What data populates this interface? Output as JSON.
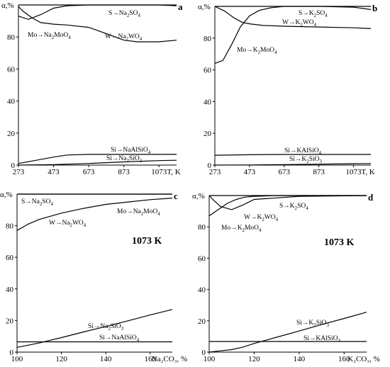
{
  "chart_data": [
    {
      "panel": "a",
      "type": "line",
      "ylabel": "α,%",
      "xlabel": "T, K",
      "xlim": [
        273,
        1173
      ],
      "ylim": [
        0,
        100
      ],
      "xticks": [
        273,
        473,
        673,
        873,
        1073
      ],
      "yticks": [
        0,
        20,
        40,
        60,
        80
      ],
      "annotation": "",
      "series": [
        {
          "name": "S→Na2SO4",
          "x": [
            273,
            473,
            673,
            873,
            1073,
            1173
          ],
          "y": [
            100,
            100,
            100,
            100,
            100,
            100
          ]
        },
        {
          "name": "Mo→Na2MoO4",
          "x": [
            273,
            330,
            400,
            473,
            550,
            673,
            873,
            1073,
            1173
          ],
          "y": [
            93,
            91,
            94,
            98,
            99.5,
            100,
            100,
            100,
            99.5
          ]
        },
        {
          "name": "W→Na2WO4",
          "x": [
            273,
            300,
            350,
            400,
            473,
            550,
            673,
            750,
            873,
            950,
            1073,
            1173
          ],
          "y": [
            99,
            96,
            92,
            89,
            88,
            87.5,
            86,
            83,
            78,
            77,
            77,
            78
          ]
        },
        {
          "name": "Si→NaAlSiO4",
          "x": [
            273,
            350,
            473,
            550,
            673,
            873,
            1073,
            1173
          ],
          "y": [
            1,
            2.5,
            5,
            6.3,
            6.7,
            6.7,
            6.7,
            6.7
          ]
        },
        {
          "name": "Si→Na2SiO3",
          "x": [
            273,
            473,
            673,
            873,
            1073,
            1173
          ],
          "y": [
            0,
            0.3,
            1.0,
            2.0,
            2.8,
            3.0
          ]
        }
      ],
      "labels": {
        "S→Na2SO4": {
          "main": "S→Na",
          "sub": "2",
          "tail": "SO",
          "sub2": "4"
        },
        "Mo→Na2MoO4": {
          "main": "Mo→Na",
          "sub": "2",
          "tail": "MoO",
          "sub2": "4"
        },
        "W→Na2WO4": {
          "main": "W→Na",
          "sub": "2",
          "tail": "WO",
          "sub2": "4"
        },
        "Si→NaAlSiO4": {
          "main": "Si→NaAlSiO",
          "sub": "4",
          "tail": "",
          "sub2": ""
        },
        "Si→Na2SiO3": {
          "main": "Si→Na",
          "sub": "2",
          "tail": "SiO",
          "sub2": "3"
        }
      }
    },
    {
      "panel": "b",
      "type": "line",
      "ylabel": "α,%",
      "xlabel": "T, K",
      "xlim": [
        273,
        1173
      ],
      "ylim": [
        0,
        100
      ],
      "xticks": [
        273,
        473,
        673,
        873,
        1073
      ],
      "yticks": [
        0,
        20,
        40,
        60,
        80
      ],
      "annotation": "",
      "series": [
        {
          "name": "S→K2SO4",
          "x": [
            273,
            473,
            673,
            873,
            1073,
            1173
          ],
          "y": [
            100,
            100,
            100,
            100,
            100,
            100
          ]
        },
        {
          "name": "W→K2WO4",
          "x": [
            273,
            330,
            380,
            430,
            473,
            550,
            673,
            873,
            1073,
            1173
          ],
          "y": [
            100,
            97,
            93,
            90,
            89,
            88,
            87.5,
            87,
            86.5,
            86
          ]
        },
        {
          "name": "Mo→K2MoO4",
          "x": [
            273,
            320,
            370,
            420,
            473,
            530,
            600,
            673,
            873,
            1073,
            1173
          ],
          "y": [
            64,
            66,
            76,
            87,
            94,
            97.5,
            99.2,
            100,
            100,
            99.5,
            98
          ]
        },
        {
          "name": "Si→KAlSiO4",
          "x": [
            273,
            473,
            673,
            873,
            1073,
            1173
          ],
          "y": [
            6.2,
            6.5,
            6.7,
            6.7,
            6.7,
            6.7
          ]
        },
        {
          "name": "Si→K2SiO3",
          "x": [
            273,
            473,
            673,
            873,
            1073,
            1173
          ],
          "y": [
            0,
            0.1,
            0.3,
            0.6,
            0.9,
            1.0
          ]
        }
      ],
      "labels": {
        "S→K2SO4": {
          "main": "S→K",
          "sub": "2",
          "tail": "SO",
          "sub2": "4"
        },
        "W→K2WO4": {
          "main": "W→K",
          "sub": "2",
          "tail": "WO",
          "sub2": "4"
        },
        "Mo→K2MoO4": {
          "main": "Mo→K",
          "sub": "2",
          "tail": "MoO",
          "sub2": "4"
        },
        "Si→KAlSiO4": {
          "main": "Si→KAlSiO",
          "sub": "4",
          "tail": "",
          "sub2": ""
        },
        "Si→K2SiO3": {
          "main": "Si→K",
          "sub": "2",
          "tail": "SiO",
          "sub2": "3"
        }
      }
    },
    {
      "panel": "c",
      "type": "line",
      "ylabel": "α,%",
      "xlabel": "Na₂CO₃, %",
      "xlim": [
        100,
        170
      ],
      "ylim": [
        0,
        100
      ],
      "xticks": [
        100,
        120,
        140,
        160
      ],
      "yticks": [
        0,
        20,
        40,
        60,
        80
      ],
      "annotation": "1073 K",
      "series": [
        {
          "name": "S→Na2SO4",
          "x": [
            100,
            120,
            140,
            160,
            170
          ],
          "y": [
            100,
            100,
            100,
            100,
            100
          ]
        },
        {
          "name": "Mo→Na2MoO4",
          "x": [
            100,
            120,
            140,
            160,
            170
          ],
          "y": [
            100,
            100,
            100,
            100,
            100
          ]
        },
        {
          "name": "W→Na2WO4",
          "x": [
            100,
            105,
            110,
            120,
            130,
            140,
            150,
            160,
            170
          ],
          "y": [
            77,
            81,
            84,
            88,
            91,
            93.5,
            95,
            96.5,
            97.5
          ]
        },
        {
          "name": "Si→Na2SiO3",
          "x": [
            100,
            110,
            120,
            130,
            140,
            150,
            160,
            170
          ],
          "y": [
            3,
            5.8,
            9.2,
            12.8,
            16.2,
            19.8,
            23.5,
            27
          ]
        },
        {
          "name": "Si→NaAlSiO4",
          "x": [
            100,
            120,
            140,
            160,
            170
          ],
          "y": [
            6.5,
            6.5,
            6.5,
            6.5,
            6.5
          ]
        }
      ],
      "labels": {
        "S→Na2SO4": {
          "main": "S→Na",
          "sub": "2",
          "tail": "SO",
          "sub2": "4"
        },
        "Mo→Na2MoO4": {
          "main": "Mo→Na",
          "sub": "2",
          "tail": "MoO",
          "sub2": "4"
        },
        "W→Na2WO4": {
          "main": "W→Na",
          "sub": "2",
          "tail": "WO",
          "sub2": "4"
        },
        "Si→Na2SiO3": {
          "main": "Si→Na",
          "sub": "2",
          "tail": "SiO",
          "sub2": "3"
        },
        "Si→NaAlSiO4": {
          "main": "Si→NaAlSiO",
          "sub": "4",
          "tail": "",
          "sub2": ""
        }
      }
    },
    {
      "panel": "d",
      "type": "line",
      "ylabel": "α,%",
      "xlabel": "K₂CO₃, %",
      "xlim": [
        100,
        170
      ],
      "ylim": [
        0,
        100
      ],
      "xticks": [
        100,
        120,
        140,
        160
      ],
      "yticks": [
        0,
        20,
        40,
        60,
        80
      ],
      "annotation": "1073 K",
      "series": [
        {
          "name": "S→K2SO4",
          "x": [
            100,
            120,
            140,
            160,
            170
          ],
          "y": [
            100,
            100,
            100,
            100,
            100
          ]
        },
        {
          "name": "Mo→K2MoO4",
          "x": [
            100,
            102,
            105,
            110,
            115,
            120,
            140,
            170
          ],
          "y": [
            100,
            97,
            93,
            91,
            94,
            97.5,
            99.5,
            100
          ]
        },
        {
          "name": "W→K2WO4",
          "x": [
            100,
            104,
            108,
            112,
            116,
            120,
            130,
            140,
            170
          ],
          "y": [
            87,
            91,
            95,
            97.5,
            99,
            99.5,
            100,
            100,
            100
          ]
        },
        {
          "name": "Si→K2SiO3",
          "x": [
            100,
            105,
            110,
            115,
            120,
            130,
            140,
            150,
            160,
            170
          ],
          "y": [
            0,
            0.8,
            1.6,
            3.2,
            5.5,
            9.5,
            13.5,
            17.6,
            21.5,
            25.5
          ]
        },
        {
          "name": "Si→KAlSiO4",
          "x": [
            100,
            120,
            140,
            160,
            170
          ],
          "y": [
            6.8,
            6.8,
            6.8,
            6.8,
            6.8
          ]
        }
      ],
      "labels": {
        "S→K2SO4": {
          "main": "S→K",
          "sub": "2",
          "tail": "SO",
          "sub2": "4"
        },
        "Mo→K2MoO4": {
          "main": "Mo→K",
          "sub": "2",
          "tail": "MoO",
          "sub2": "4"
        },
        "W→K2WO4": {
          "main": "W→K",
          "sub": "2",
          "tail": "WO",
          "sub2": "4"
        },
        "Si→K2SiO3": {
          "main": "Si→K",
          "sub": "2",
          "tail": "SiO",
          "sub2": "3"
        },
        "Si→KAlSiO4": {
          "main": "Si→KAlSiO",
          "sub": "4",
          "tail": "",
          "sub2": ""
        }
      }
    }
  ]
}
